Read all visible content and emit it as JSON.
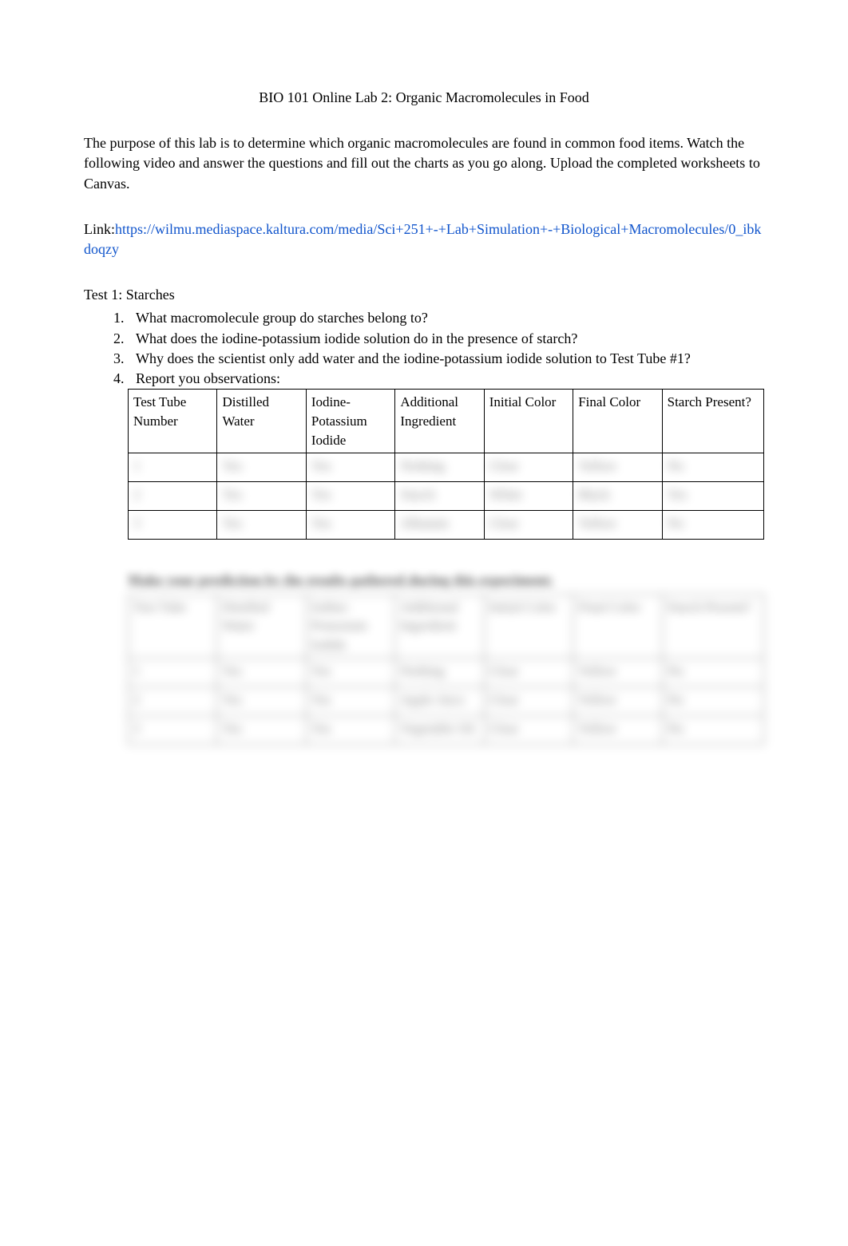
{
  "title": "BIO 101 Online Lab 2: Organic Macromolecules in Food",
  "intro": "The purpose of this lab is to determine which organic macromolecules are found in common food items. Watch the following video and answer the questions and fill out the charts as you go along. Upload the completed worksheets to Canvas.",
  "link_label": "Link:",
  "link_url": "https://wilmu.mediaspace.kaltura.com/media/Sci+251+-+Lab+Simulation+-+Biological+Macromolecules/0_ibkdoqzy",
  "test_heading": "Test 1: Starches",
  "questions": {
    "q1": "What macromolecule group do starches belong to?",
    "q2": "What does the iodine-potassium iodide solution do in the presence of starch?",
    "q3": "Why does the scientist only add water and the iodine-potassium iodide solution to Test Tube #1?",
    "q4": "Report you observations:"
  },
  "table1": {
    "headers": {
      "testtube": "Test Tube Number",
      "water": "Distilled Water",
      "iodine": "Iodine-Potassium Iodide",
      "additional": "Additional Ingredient",
      "initial": "Initial Color",
      "final": "Final Color",
      "starch": "Starch Present?"
    },
    "rows": [
      {
        "num": "1",
        "water": "Yes",
        "iodine": "Yes",
        "additional": "Nothing",
        "initial": "Clear",
        "final": "Yellow",
        "starch": "No"
      },
      {
        "num": "2",
        "water": "Yes",
        "iodine": "Yes",
        "additional": "Starch",
        "initial": "White",
        "final": "Black",
        "starch": "Yes"
      },
      {
        "num": "3",
        "water": "Yes",
        "iodine": "Yes",
        "additional": "Albumin",
        "initial": "Clear",
        "final": "Yellow",
        "starch": "No"
      }
    ]
  },
  "prediction_heading": "Make your prediction by the results gathered during this experiment:",
  "table2": {
    "headers": {
      "testtube": "Test Tube",
      "water": "Distilled Water",
      "iodine": "Iodine-Potassium Iodide",
      "additional": "Additional Ingredient",
      "initial": "Initial Color",
      "final": "Final Color",
      "starch": "Starch Present?"
    },
    "rows": [
      {
        "num": "1",
        "water": "Yes",
        "iodine": "Yes",
        "additional": "Nothing",
        "initial": "Clear",
        "final": "Yellow",
        "starch": "No"
      },
      {
        "num": "2",
        "water": "Yes",
        "iodine": "Yes",
        "additional": "Apple Juice",
        "initial": "Clear",
        "final": "Yellow",
        "starch": "No"
      },
      {
        "num": "3",
        "water": "Yes",
        "iodine": "Yes",
        "additional": "Vegetable Oil",
        "initial": "Clear",
        "final": "Yellow",
        "starch": "No"
      }
    ]
  },
  "colors": {
    "text": "#000000",
    "link": "#1155cc",
    "background": "#ffffff",
    "border": "#000000"
  }
}
